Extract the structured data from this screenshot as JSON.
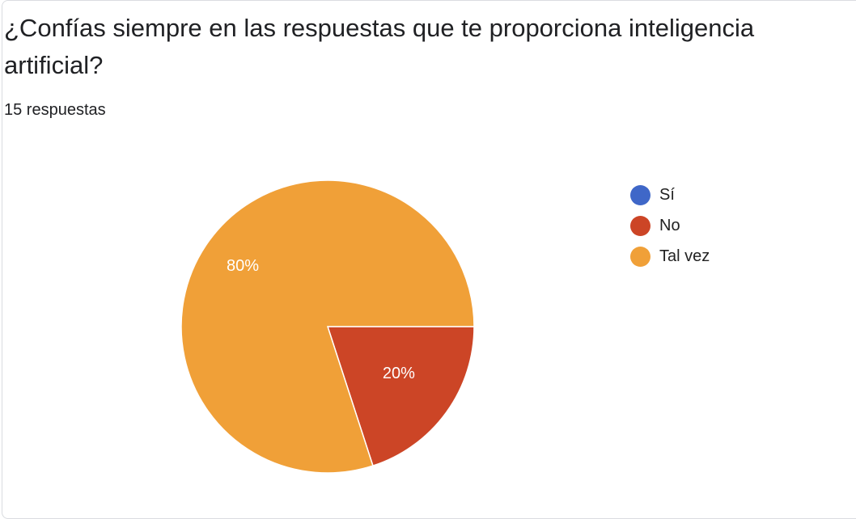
{
  "question": {
    "title": "¿Confías siempre en las respuestas que te proporciona inteligencia artificial?",
    "response_count": "15 respuestas"
  },
  "chart_data": {
    "type": "pie",
    "title": "¿Confías siempre en las respuestas que te proporciona inteligencia artificial?",
    "categories": [
      "Sí",
      "No",
      "Tal vez"
    ],
    "values": [
      0,
      20,
      80
    ],
    "colors": [
      "#3f67c8",
      "#cc4526",
      "#f0a038"
    ],
    "data_labels": [
      "",
      "20%",
      "80%"
    ],
    "legend_position": "right"
  }
}
